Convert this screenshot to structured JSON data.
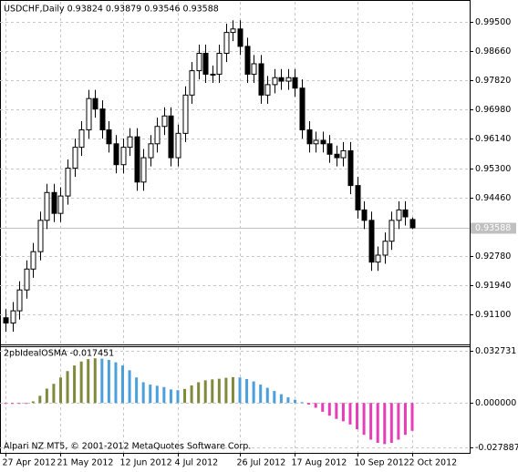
{
  "chart_data": [
    {
      "type": "candlestick",
      "title": "USDCHF,Daily  0.93824 0.93879 0.93546 0.93588",
      "categories": [
        "27 Apr 2012",
        null,
        null,
        null,
        null,
        null,
        null,
        null,
        "21 May 2012",
        null,
        null,
        null,
        null,
        null,
        null,
        null,
        null,
        "12 Jun 2012",
        null,
        null,
        null,
        null,
        null,
        null,
        null,
        "4 Jul 2012",
        null,
        null,
        null,
        null,
        null,
        null,
        null,
        null,
        "26 Jul 2012",
        null,
        null,
        null,
        null,
        null,
        null,
        null,
        "17 Aug 2012",
        null,
        null,
        null,
        null,
        null,
        null,
        null,
        null,
        "10 Sep 2012",
        null,
        null,
        null,
        null,
        null,
        null,
        null,
        "2 Oct 2012"
      ],
      "open": [
        0.91,
        0.9085,
        0.912,
        0.918,
        0.924,
        0.929,
        0.938,
        0.946,
        0.94,
        0.945,
        0.953,
        0.959,
        0.964,
        0.973,
        0.97,
        0.964,
        0.96,
        0.954,
        0.959,
        0.962,
        0.949,
        0.956,
        0.96,
        0.965,
        0.968,
        0.956,
        0.963,
        0.974,
        0.981,
        0.986,
        0.98,
        0.98,
        0.986,
        0.992,
        0.993,
        0.988,
        0.98,
        0.983,
        0.974,
        0.977,
        0.979,
        0.978,
        0.979,
        0.976,
        0.964,
        0.96,
        0.961,
        0.96,
        0.957,
        0.956,
        0.958,
        0.948,
        0.941,
        0.938,
        0.926,
        0.928,
        0.932,
        0.938,
        0.941,
        0.93824
      ],
      "high": [
        0.9125,
        0.9145,
        0.9205,
        0.9265,
        0.9315,
        0.9405,
        0.9485,
        0.9485,
        0.9475,
        0.9555,
        0.9615,
        0.9665,
        0.9755,
        0.9755,
        0.9725,
        0.9665,
        0.9625,
        0.9615,
        0.9645,
        0.9645,
        0.9585,
        0.9625,
        0.9675,
        0.9705,
        0.9705,
        0.9655,
        0.9765,
        0.9835,
        0.9885,
        0.9885,
        0.9825,
        0.9885,
        0.9945,
        0.9955,
        0.9955,
        0.9905,
        0.9855,
        0.9855,
        0.9795,
        0.9815,
        0.9815,
        0.9815,
        0.9815,
        0.9785,
        0.9665,
        0.9635,
        0.9635,
        0.9625,
        0.9595,
        0.9605,
        0.9605,
        0.9505,
        0.9435,
        0.9405,
        0.9305,
        0.9345,
        0.9405,
        0.9435,
        0.9435,
        0.93879
      ],
      "low": [
        0.906,
        0.906,
        0.9095,
        0.9155,
        0.9215,
        0.9265,
        0.9355,
        0.9375,
        0.9375,
        0.9425,
        0.9505,
        0.9565,
        0.9615,
        0.9675,
        0.9615,
        0.9575,
        0.9515,
        0.9515,
        0.9565,
        0.9465,
        0.9465,
        0.9535,
        0.9575,
        0.9625,
        0.9535,
        0.9535,
        0.9605,
        0.9715,
        0.9785,
        0.9775,
        0.9775,
        0.9775,
        0.9835,
        0.9895,
        0.9855,
        0.9775,
        0.9775,
        0.9715,
        0.9715,
        0.9745,
        0.9755,
        0.9755,
        0.9735,
        0.9615,
        0.9575,
        0.9575,
        0.9575,
        0.9545,
        0.9535,
        0.9535,
        0.9455,
        0.9385,
        0.9355,
        0.9235,
        0.9235,
        0.9255,
        0.9295,
        0.9355,
        0.9365,
        0.93546
      ],
      "close": [
        0.9085,
        0.912,
        0.918,
        0.924,
        0.929,
        0.938,
        0.946,
        0.94,
        0.945,
        0.953,
        0.959,
        0.964,
        0.973,
        0.97,
        0.964,
        0.96,
        0.954,
        0.959,
        0.962,
        0.949,
        0.956,
        0.96,
        0.965,
        0.968,
        0.956,
        0.963,
        0.974,
        0.981,
        0.986,
        0.98,
        0.98,
        0.986,
        0.992,
        0.993,
        0.988,
        0.98,
        0.983,
        0.974,
        0.977,
        0.979,
        0.978,
        0.979,
        0.976,
        0.964,
        0.96,
        0.961,
        0.96,
        0.957,
        0.956,
        0.958,
        0.948,
        0.941,
        0.938,
        0.926,
        0.928,
        0.932,
        0.938,
        0.941,
        0.939,
        0.93588
      ],
      "last_price": 0.93588,
      "ylim": [
        0.9026,
        1.0008
      ],
      "yticks": [
        {
          "value": 0.995,
          "label": "0.99500"
        },
        {
          "value": 0.9866,
          "label": "0.98660"
        },
        {
          "value": 0.9782,
          "label": "0.97820"
        },
        {
          "value": 0.9698,
          "label": "0.96980"
        },
        {
          "value": 0.9614,
          "label": "0.96140"
        },
        {
          "value": 0.953,
          "label": "0.95300"
        },
        {
          "value": 0.9446,
          "label": "0.94460"
        },
        {
          "value": 0.9278,
          "label": "0.92780"
        },
        {
          "value": 0.9194,
          "label": "0.91940"
        },
        {
          "value": 0.911,
          "label": "0.91100"
        }
      ],
      "grid": true,
      "color": "#000000"
    },
    {
      "type": "histogram",
      "title": "2pbIdealOSMA -0.017451",
      "values": [
        -0.0005,
        -0.0006,
        -0.0004,
        -0.0003,
        0.001,
        0.0045,
        0.009,
        0.012,
        0.016,
        0.02,
        0.0235,
        0.026,
        0.0275,
        0.028,
        0.0278,
        0.027,
        0.0255,
        0.0235,
        0.0205,
        0.016,
        0.013,
        0.0115,
        0.0108,
        0.01,
        0.0085,
        0.008,
        0.0088,
        0.011,
        0.013,
        0.0142,
        0.0148,
        0.0152,
        0.0158,
        0.0162,
        0.016,
        0.015,
        0.0135,
        0.0115,
        0.0095,
        0.0075,
        0.0055,
        0.0035,
        0.002,
        0.0005,
        -0.001,
        -0.003,
        -0.0055,
        -0.008,
        -0.01,
        -0.0115,
        -0.0135,
        -0.0165,
        -0.02,
        -0.023,
        -0.025,
        -0.0258,
        -0.025,
        -0.023,
        -0.02,
        -0.017451
      ],
      "ylim": [
        -0.0313,
        0.035
      ],
      "yticks": [
        {
          "value": 0.032731,
          "label": "0.032731"
        },
        {
          "value": 0,
          "label": "0.000000"
        },
        {
          "value": -0.027887,
          "label": "-0.027887"
        }
      ],
      "grid": true,
      "colors": {
        "rising": "#808a3c",
        "falling": "#4a9fdc",
        "negative": "#e53fb8"
      },
      "footer": "Alpari NZ MT5, © 2001-2012 MetaQuotes Software Corp."
    }
  ]
}
